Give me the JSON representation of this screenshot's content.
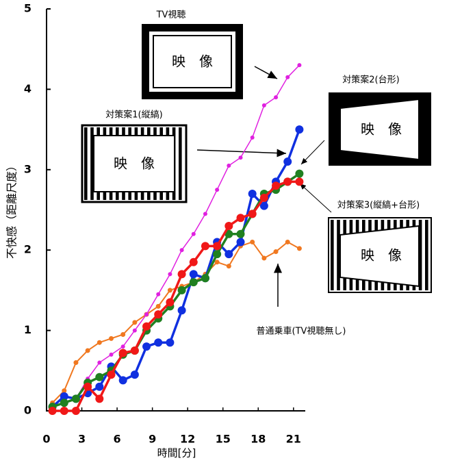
{
  "chart_data": {
    "type": "line",
    "x_label": "時間[分]",
    "y_label": "不快感（距離尺度）",
    "xlim": [
      0,
      22
    ],
    "xticks": [
      0,
      3,
      6,
      9,
      12,
      15,
      18,
      21
    ],
    "ylim": [
      0,
      5
    ],
    "yticks": [
      0,
      1,
      2,
      3,
      4,
      5
    ],
    "x": [
      0.5,
      1.5,
      2.5,
      3.5,
      4.5,
      5.5,
      6.5,
      7.5,
      8.5,
      9.5,
      10.5,
      11.5,
      12.5,
      13.5,
      14.5,
      15.5,
      16.5,
      17.5,
      18.5,
      19.5,
      20.5,
      21.5
    ],
    "image_text": "映　像",
    "series": [
      {
        "name": "普通乗車(TV視聴無し)",
        "color": "#f07820",
        "values": [
          0.1,
          0.25,
          0.6,
          0.75,
          0.85,
          0.9,
          0.95,
          1.1,
          1.2,
          1.3,
          1.5,
          1.55,
          1.6,
          1.7,
          1.85,
          1.8,
          2.05,
          2.1,
          1.9,
          1.98,
          2.1,
          2.02
        ]
      },
      {
        "name": "TV視聴",
        "color": "#e020e0",
        "values": [
          0.05,
          0.1,
          0.15,
          0.4,
          0.6,
          0.7,
          0.8,
          1.0,
          1.2,
          1.45,
          1.7,
          2.0,
          2.2,
          2.45,
          2.75,
          3.05,
          3.15,
          3.4,
          3.8,
          3.9,
          4.15,
          4.3
        ]
      },
      {
        "name": "対策案1(縦縞)",
        "color": "#1030e0",
        "values": [
          0.05,
          0.18,
          0.15,
          0.22,
          0.3,
          0.55,
          0.38,
          0.45,
          0.8,
          0.85,
          0.85,
          1.25,
          1.7,
          1.65,
          2.1,
          1.95,
          2.1,
          2.7,
          2.55,
          2.85,
          3.1,
          3.5
        ]
      },
      {
        "name": "対策案2(台形)",
        "color": "#208020",
        "values": [
          0.05,
          0.1,
          0.15,
          0.35,
          0.42,
          0.5,
          0.7,
          0.75,
          1.0,
          1.15,
          1.3,
          1.5,
          1.6,
          1.65,
          1.95,
          2.2,
          2.2,
          2.45,
          2.7,
          2.75,
          2.85,
          2.95
        ]
      },
      {
        "name": "対策案3(縦縞+台形)",
        "color": "#f01818",
        "values": [
          0,
          0,
          0,
          0.3,
          0.15,
          0.45,
          0.72,
          0.75,
          1.05,
          1.2,
          1.35,
          1.7,
          1.85,
          2.05,
          2.05,
          2.3,
          2.4,
          2.45,
          2.65,
          2.8,
          2.85,
          2.85
        ]
      }
    ]
  }
}
